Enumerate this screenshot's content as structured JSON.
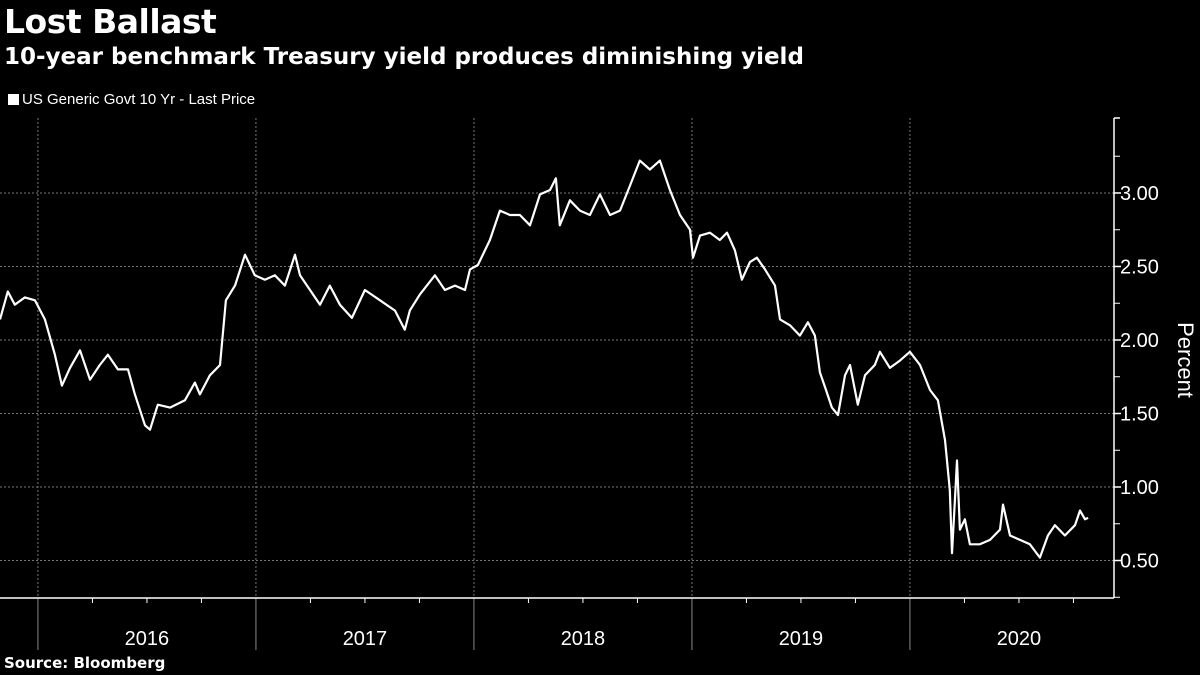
{
  "header": {
    "title": "Lost Ballast",
    "subtitle": "10-year benchmark Treasury yield produces diminishing yield"
  },
  "footer": {
    "source": "Source: Bloomberg"
  },
  "colors": {
    "background": "#000000",
    "line": "#ffffff",
    "grid": "#777777"
  },
  "chart_data": {
    "type": "line",
    "title": "Lost Ballast",
    "subtitle": "10-year benchmark Treasury yield produces diminishing yield",
    "xlabel": "",
    "ylabel": "Percent",
    "legend": {
      "placement": "top-left",
      "entries": [
        "US Generic Govt 10 Yr - Last Price"
      ]
    },
    "xlim": [
      2015.826,
      2020.936
    ],
    "ylim": [
      0.245,
      3.51
    ],
    "x_tick_labels": [
      "2016",
      "2017",
      "2018",
      "2019",
      "2020"
    ],
    "y_ticks": [
      0.5,
      1.0,
      1.5,
      2.0,
      2.5,
      3.0
    ],
    "y_tick_labels": [
      "0.50",
      "1.00",
      "1.50",
      "2.00",
      "2.50",
      "3.00"
    ],
    "grid": true,
    "series": [
      {
        "name": "US Generic Govt 10 Yr - Last Price",
        "x": [
          2015.826,
          2015.862,
          2015.894,
          2015.94,
          2015.986,
          2016.032,
          2016.078,
          2016.11,
          2016.147,
          2016.193,
          2016.239,
          2016.284,
          2016.321,
          2016.367,
          2016.413,
          2016.445,
          2016.491,
          2016.514,
          2016.55,
          2016.606,
          2016.674,
          2016.72,
          2016.743,
          2016.789,
          2016.835,
          2016.862,
          2016.904,
          2016.95,
          2016.995,
          2017.041,
          2017.087,
          2017.133,
          2017.179,
          2017.202,
          2017.248,
          2017.294,
          2017.339,
          2017.385,
          2017.44,
          2017.5,
          2017.569,
          2017.638,
          2017.683,
          2017.706,
          2017.752,
          2017.821,
          2017.867,
          2017.913,
          2017.959,
          2017.982,
          2018.018,
          2018.073,
          2018.119,
          2018.165,
          2018.211,
          2018.257,
          2018.303,
          2018.349,
          2018.376,
          2018.394,
          2018.44,
          2018.486,
          2018.532,
          2018.578,
          2018.624,
          2018.67,
          2018.716,
          2018.761,
          2018.807,
          2018.853,
          2018.899,
          2018.945,
          2018.991,
          2019.005,
          2019.037,
          2019.083,
          2019.128,
          2019.161,
          2019.197,
          2019.229,
          2019.266,
          2019.298,
          2019.335,
          2019.381,
          2019.404,
          2019.45,
          2019.495,
          2019.532,
          2019.564,
          2019.587,
          2019.615,
          2019.642,
          2019.67,
          2019.702,
          2019.725,
          2019.761,
          2019.794,
          2019.839,
          2019.862,
          2019.908,
          2019.954,
          2020.0,
          2020.046,
          2020.092,
          2020.128,
          2020.161,
          2020.183,
          2020.193,
          2020.206,
          2020.216,
          2020.229,
          2020.252,
          2020.275,
          2020.321,
          2020.367,
          2020.413,
          2020.427,
          2020.459,
          2020.505,
          2020.55,
          2020.596,
          2020.633,
          2020.665,
          2020.711,
          2020.757,
          2020.78,
          2020.803,
          2020.817
        ],
        "values": [
          2.14,
          2.33,
          2.24,
          2.29,
          2.27,
          2.14,
          1.9,
          1.69,
          1.81,
          1.93,
          1.73,
          1.83,
          1.9,
          1.8,
          1.8,
          1.63,
          1.42,
          1.39,
          1.56,
          1.54,
          1.59,
          1.71,
          1.63,
          1.76,
          1.83,
          2.27,
          2.37,
          2.58,
          2.44,
          2.41,
          2.44,
          2.37,
          2.58,
          2.44,
          2.34,
          2.24,
          2.37,
          2.24,
          2.15,
          2.34,
          2.27,
          2.2,
          2.07,
          2.2,
          2.31,
          2.44,
          2.34,
          2.37,
          2.34,
          2.48,
          2.51,
          2.68,
          2.88,
          2.85,
          2.85,
          2.78,
          2.99,
          3.02,
          3.1,
          2.78,
          2.95,
          2.88,
          2.85,
          2.99,
          2.85,
          2.88,
          3.05,
          3.22,
          3.16,
          3.22,
          3.02,
          2.85,
          2.75,
          2.56,
          2.71,
          2.73,
          2.68,
          2.73,
          2.61,
          2.41,
          2.53,
          2.56,
          2.48,
          2.37,
          2.14,
          2.1,
          2.03,
          2.12,
          2.03,
          1.78,
          1.66,
          1.54,
          1.49,
          1.76,
          1.83,
          1.56,
          1.76,
          1.83,
          1.92,
          1.81,
          1.86,
          1.92,
          1.83,
          1.66,
          1.59,
          1.32,
          0.98,
          0.55,
          0.91,
          1.18,
          0.71,
          0.78,
          0.61,
          0.61,
          0.64,
          0.71,
          0.88,
          0.67,
          0.64,
          0.61,
          0.52,
          0.67,
          0.74,
          0.67,
          0.74,
          0.84,
          0.78,
          0.79
        ]
      }
    ]
  }
}
